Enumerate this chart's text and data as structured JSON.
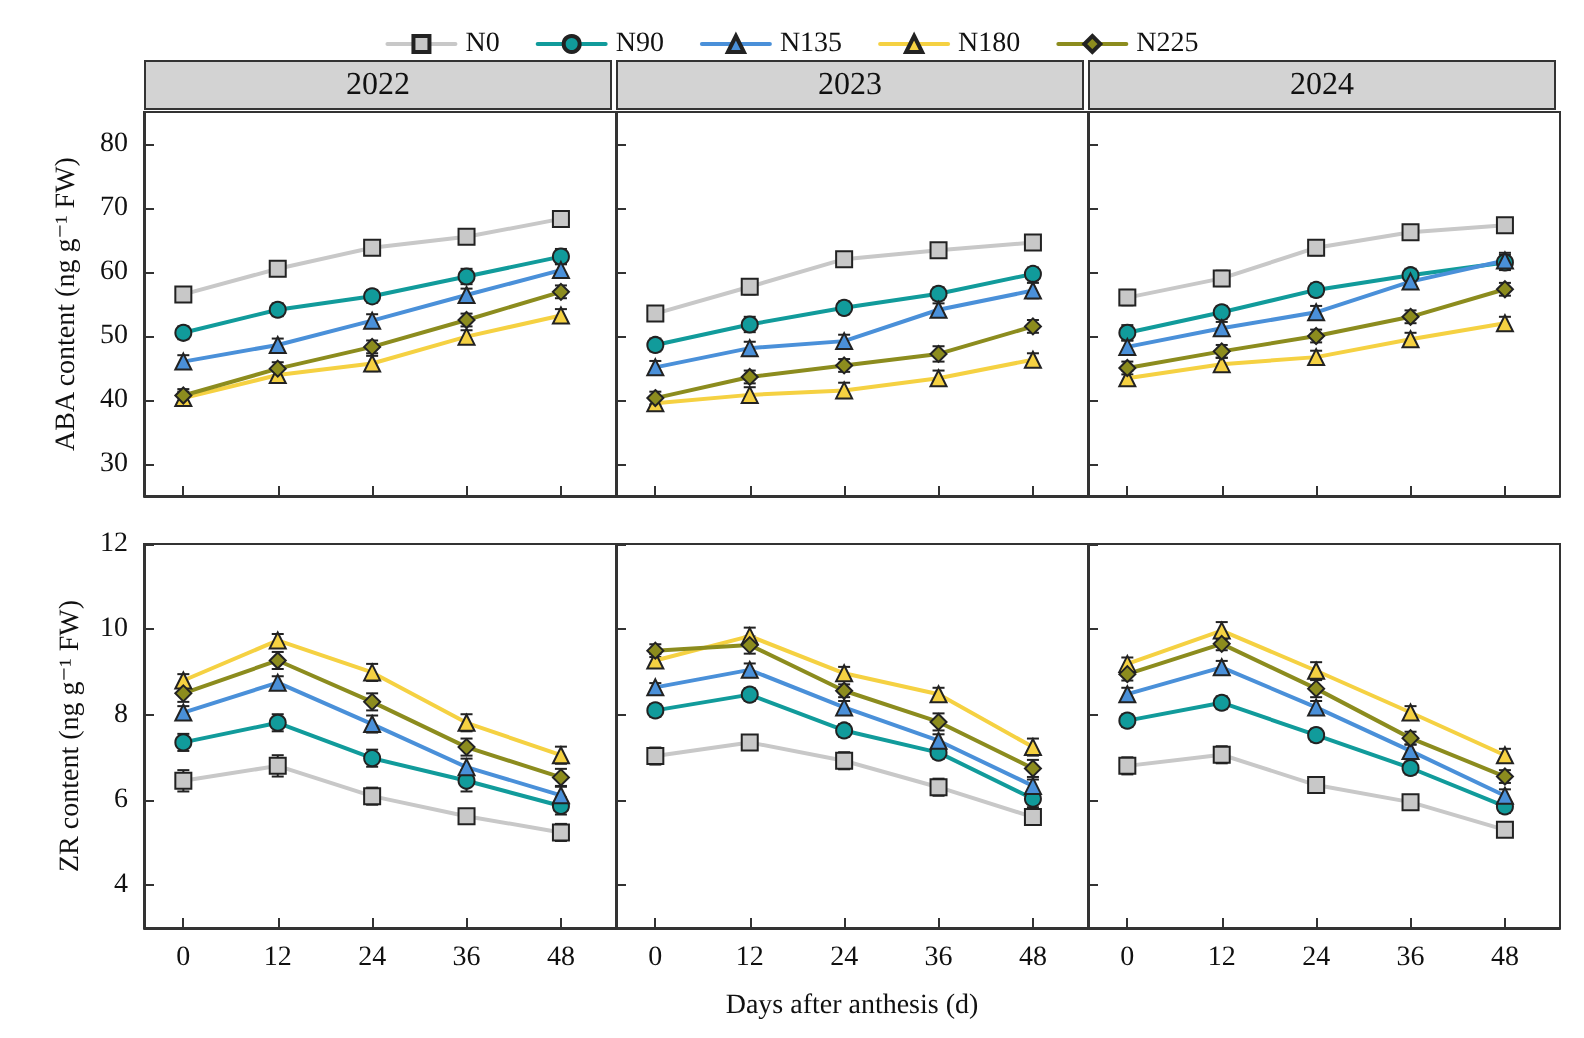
{
  "chart_data": [
    {
      "type": "line",
      "title": "2022",
      "ylabel": "ABA content (ng g⁻¹ FW)",
      "x": [
        0,
        12,
        24,
        36,
        48
      ],
      "xlim": [
        -5,
        55
      ],
      "xticks": [
        0,
        12,
        24,
        36,
        48
      ],
      "ylim": [
        25,
        85
      ],
      "yticks": [
        30,
        40,
        50,
        60,
        70,
        80
      ],
      "tick_labels": "y",
      "legend": "top",
      "series": [
        {
          "name": "N0",
          "color": "#c8c8c8",
          "marker": "square",
          "values": [
            56.5,
            60.5,
            63.8,
            65.5,
            68.3
          ],
          "errors": [
            1,
            1,
            1,
            1,
            1
          ]
        },
        {
          "name": "N90",
          "color": "#119b9b",
          "marker": "circle",
          "values": [
            50.5,
            54.1,
            56.2,
            59.3,
            62.4
          ],
          "errors": [
            1,
            1,
            1,
            1.2,
            1.2
          ]
        },
        {
          "name": "N135",
          "color": "#4a90d9",
          "marker": "triangle",
          "values": [
            46,
            48.6,
            52.4,
            56.4,
            60.3
          ],
          "errors": [
            1,
            1,
            1,
            1,
            1
          ]
        },
        {
          "name": "N180",
          "color": "#f5d142",
          "marker": "triangle",
          "values": [
            40.3,
            43.9,
            45.7,
            49.9,
            53.2
          ],
          "errors": [
            1,
            1.2,
            1.2,
            1,
            1
          ]
        },
        {
          "name": "N225",
          "color": "#8c8c1e",
          "marker": "diamond",
          "values": [
            40.7,
            44.9,
            48.3,
            52.5,
            56.9
          ],
          "errors": [
            1,
            1,
            1,
            1,
            1
          ]
        }
      ]
    },
    {
      "type": "line",
      "title": "2023",
      "x": [
        0,
        12,
        24,
        36,
        48
      ],
      "xlim": [
        -5,
        55
      ],
      "xticks": [
        0,
        12,
        24,
        36,
        48
      ],
      "ylim": [
        25,
        85
      ],
      "yticks": [
        30,
        40,
        50,
        60,
        70,
        80
      ],
      "tick_labels": false,
      "series": [
        {
          "color": "#c8c8c8",
          "marker": "square",
          "values": [
            53.5,
            57.7,
            62,
            63.4,
            64.6
          ],
          "errors": [
            1,
            1.2,
            1,
            1,
            1
          ]
        },
        {
          "color": "#119b9b",
          "marker": "circle",
          "values": [
            48.6,
            51.8,
            54.4,
            56.6,
            59.7
          ],
          "errors": [
            1,
            1.2,
            1,
            1,
            1
          ]
        },
        {
          "color": "#4a90d9",
          "marker": "triangle",
          "values": [
            45.1,
            48.1,
            49.2,
            54.1,
            57.1
          ],
          "errors": [
            1,
            1,
            1,
            1,
            1.2
          ]
        },
        {
          "color": "#f5d142",
          "marker": "triangle",
          "values": [
            39.5,
            40.8,
            41.5,
            43.4,
            46.3
          ],
          "errors": [
            1,
            1.2,
            1.2,
            1.2,
            1
          ]
        },
        {
          "color": "#8c8c1e",
          "marker": "diamond",
          "values": [
            40.3,
            43.6,
            45.4,
            47.2,
            51.5
          ],
          "errors": [
            1,
            1,
            1,
            1.2,
            1
          ]
        }
      ]
    },
    {
      "type": "line",
      "title": "2024",
      "x": [
        0,
        12,
        24,
        36,
        48
      ],
      "xlim": [
        -5,
        55
      ],
      "xticks": [
        0,
        12,
        24,
        36,
        48
      ],
      "ylim": [
        25,
        85
      ],
      "yticks": [
        30,
        40,
        50,
        60,
        70,
        80
      ],
      "tick_labels": false,
      "series": [
        {
          "color": "#c8c8c8",
          "marker": "square",
          "values": [
            56,
            59,
            63.8,
            66.2,
            67.3
          ],
          "errors": [
            1.2,
            1.2,
            1.2,
            1,
            1
          ]
        },
        {
          "color": "#119b9b",
          "marker": "circle",
          "values": [
            50.5,
            53.7,
            57.2,
            59.5,
            61.5
          ],
          "errors": [
            1.2,
            1,
            1,
            1,
            1.2
          ]
        },
        {
          "color": "#4a90d9",
          "marker": "triangle",
          "values": [
            48.3,
            51.2,
            53.7,
            58.5,
            61.8
          ],
          "errors": [
            1,
            1,
            1,
            1,
            1.2
          ]
        },
        {
          "color": "#f5d142",
          "marker": "triangle",
          "values": [
            43.4,
            45.6,
            46.7,
            49.5,
            52
          ],
          "errors": [
            1.2,
            1,
            1,
            1,
            1
          ]
        },
        {
          "color": "#8c8c1e",
          "marker": "diamond",
          "values": [
            45,
            47.6,
            50,
            53,
            57.3
          ],
          "errors": [
            1,
            1,
            1,
            1,
            1
          ]
        }
      ]
    },
    {
      "type": "line",
      "ylabel": "ZR content (ng g⁻¹ FW)",
      "x": [
        0,
        12,
        24,
        36,
        48
      ],
      "xlim": [
        -5,
        55
      ],
      "xticks": [
        0,
        12,
        24,
        36,
        48
      ],
      "ylim": [
        3,
        12
      ],
      "yticks": [
        4,
        6,
        8,
        10,
        12
      ],
      "series": [
        {
          "color": "#c8c8c8",
          "marker": "square",
          "values": [
            6.45,
            6.8,
            6.09,
            5.62,
            5.24
          ],
          "errors": [
            0.25,
            0.25,
            0.2,
            0.15,
            0.2
          ]
        },
        {
          "color": "#119b9b",
          "marker": "circle",
          "values": [
            7.35,
            7.81,
            6.98,
            6.45,
            5.86
          ],
          "errors": [
            0.2,
            0.2,
            0.2,
            0.25,
            0.2
          ]
        },
        {
          "color": "#4a90d9",
          "marker": "triangle",
          "values": [
            8.05,
            8.75,
            7.78,
            6.77,
            6.11
          ],
          "errors": [
            0.15,
            0.15,
            0.2,
            0.2,
            0.2
          ]
        },
        {
          "color": "#f5d142",
          "marker": "triangle",
          "values": [
            8.8,
            9.74,
            8.99,
            7.81,
            7.05
          ],
          "errors": [
            0.15,
            0.15,
            0.2,
            0.2,
            0.2
          ]
        },
        {
          "color": "#8c8c1e",
          "marker": "diamond",
          "values": [
            8.5,
            9.27,
            8.3,
            7.24,
            6.53
          ],
          "errors": [
            0.2,
            0.2,
            0.2,
            0.2,
            0.2
          ]
        }
      ]
    },
    {
      "type": "line",
      "xlabel": "Days after anthesis (d)",
      "x": [
        0,
        12,
        24,
        36,
        48
      ],
      "xlim": [
        -5,
        55
      ],
      "xticks": [
        0,
        12,
        24,
        36,
        48
      ],
      "ylim": [
        3,
        12
      ],
      "yticks": [
        4,
        6,
        8,
        10,
        12
      ],
      "tick_labels": "x",
      "series": [
        {
          "color": "#c8c8c8",
          "marker": "square",
          "values": [
            7.03,
            7.35,
            6.92,
            6.3,
            5.6
          ],
          "errors": [
            0.2,
            0.15,
            0.2,
            0.2,
            0.15
          ]
        },
        {
          "color": "#119b9b",
          "marker": "circle",
          "values": [
            8.1,
            8.47,
            7.63,
            7.11,
            6.03
          ],
          "errors": [
            0.15,
            0.15,
            0.15,
            0.15,
            0.2
          ]
        },
        {
          "color": "#4a90d9",
          "marker": "triangle",
          "values": [
            8.64,
            9.05,
            8.17,
            7.39,
            6.33
          ],
          "errors": [
            0.1,
            0.15,
            0.15,
            0.15,
            0.15
          ]
        },
        {
          "color": "#f5d142",
          "marker": "triangle",
          "values": [
            9.27,
            9.84,
            8.97,
            8.48,
            7.24
          ],
          "errors": [
            0.15,
            0.2,
            0.15,
            0.15,
            0.2
          ]
        },
        {
          "color": "#8c8c1e",
          "marker": "diamond",
          "values": [
            9.5,
            9.63,
            8.56,
            7.83,
            6.74
          ],
          "errors": [
            0.15,
            0.2,
            0.15,
            0.2,
            0.2
          ]
        }
      ]
    },
    {
      "type": "line",
      "x": [
        0,
        12,
        24,
        36,
        48
      ],
      "xlim": [
        -5,
        55
      ],
      "xticks": [
        0,
        12,
        24,
        36,
        48
      ],
      "ylim": [
        3,
        12
      ],
      "yticks": [
        4,
        6,
        8,
        10,
        12
      ],
      "tick_labels": "x",
      "series": [
        {
          "color": "#c8c8c8",
          "marker": "square",
          "values": [
            6.8,
            7.06,
            6.35,
            5.95,
            5.3
          ],
          "errors": [
            0.2,
            0.2,
            0.15,
            0.15,
            0.15
          ]
        },
        {
          "color": "#119b9b",
          "marker": "circle",
          "values": [
            7.86,
            8.28,
            7.52,
            6.75,
            5.85
          ],
          "errors": [
            0.15,
            0.15,
            0.15,
            0.15,
            0.15
          ]
        },
        {
          "color": "#4a90d9",
          "marker": "triangle",
          "values": [
            8.48,
            9.11,
            8.17,
            7.15,
            6.1
          ],
          "errors": [
            0.15,
            0.15,
            0.15,
            0.15,
            0.15
          ]
        },
        {
          "color": "#f5d142",
          "marker": "triangle",
          "values": [
            9.19,
            9.97,
            9.03,
            8.05,
            7.05
          ],
          "errors": [
            0.15,
            0.2,
            0.2,
            0.15,
            0.15
          ]
        },
        {
          "color": "#8c8c1e",
          "marker": "diamond",
          "values": [
            8.95,
            9.66,
            8.61,
            7.45,
            6.55
          ],
          "errors": [
            0.15,
            0.15,
            0.2,
            0.15,
            0.15
          ]
        }
      ]
    }
  ]
}
